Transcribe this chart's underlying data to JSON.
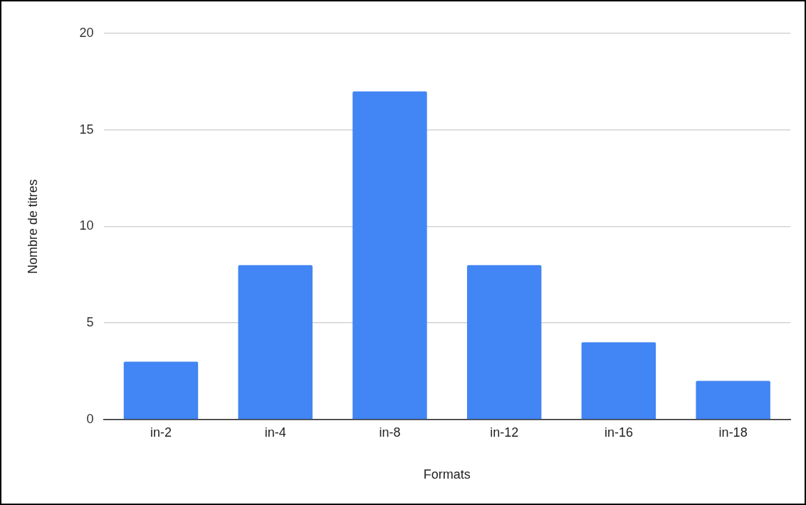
{
  "chart_data": {
    "type": "bar",
    "xlabel": "Formats",
    "ylabel": "Nombre de titres",
    "categories": [
      "in-2",
      "in-4",
      "in-8",
      "in-12",
      "in-16",
      "in-18"
    ],
    "values": [
      3,
      8,
      17,
      8,
      4,
      2
    ],
    "color": "#4285f4",
    "ylim": [
      0,
      20
    ],
    "yticks": [
      0,
      5,
      10,
      15,
      20
    ],
    "grid": "y",
    "legend": false
  }
}
